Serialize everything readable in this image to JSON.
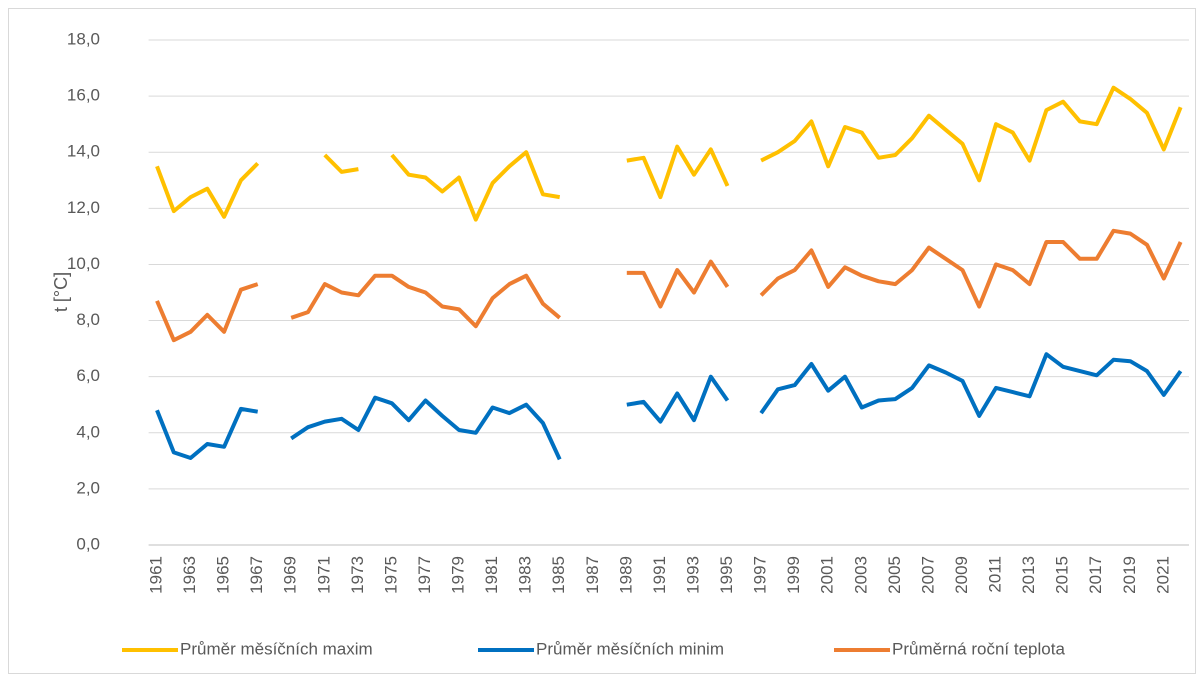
{
  "chart_data": {
    "type": "line",
    "ylabel": "t [°C]",
    "categories": [
      "1961",
      null,
      "1963",
      null,
      "1965",
      null,
      "1967",
      null,
      "1969",
      null,
      "1971",
      null,
      "1973",
      null,
      "1975",
      null,
      "1977",
      null,
      "1979",
      null,
      "1981",
      null,
      "1983",
      null,
      "1985",
      null,
      "1987",
      null,
      "1989",
      null,
      "1991",
      null,
      "1993",
      null,
      "1995",
      null,
      "1997",
      null,
      "1999",
      null,
      "2001",
      null,
      "2003",
      null,
      "2005",
      null,
      "2007",
      null,
      "2009",
      null,
      "2011",
      null,
      "2013",
      null,
      "2015",
      null,
      "2017",
      null,
      "2019",
      null,
      "2021",
      null
    ],
    "series": [
      {
        "name": "Průměr měsíčních maxim",
        "color": "#ffc000",
        "values": [
          13.5,
          11.9,
          12.4,
          12.7,
          11.7,
          13.0,
          13.6,
          null,
          null,
          null,
          13.9,
          13.3,
          13.4,
          null,
          13.9,
          13.2,
          13.1,
          12.6,
          13.1,
          11.6,
          12.9,
          13.5,
          14.0,
          12.5,
          12.4,
          null,
          null,
          null,
          13.7,
          13.8,
          12.4,
          14.2,
          13.2,
          14.1,
          12.8,
          null,
          13.7,
          14.0,
          14.4,
          15.1,
          13.5,
          14.9,
          14.7,
          13.8,
          13.9,
          14.5,
          15.3,
          14.8,
          14.3,
          13.0,
          15.0,
          14.7,
          13.7,
          15.5,
          15.8,
          15.1,
          15.0,
          16.3,
          15.9,
          15.4,
          14.1,
          15.6
        ]
      },
      {
        "name": "Průměr měsíčních minim",
        "color": "#0070c0",
        "values": [
          4.8,
          3.3,
          3.1,
          3.6,
          3.5,
          4.85,
          4.75,
          null,
          3.8,
          4.2,
          4.4,
          4.5,
          4.1,
          5.25,
          5.05,
          4.45,
          5.15,
          4.6,
          4.1,
          4.0,
          4.9,
          4.7,
          5.0,
          4.35,
          3.05,
          null,
          null,
          null,
          5.0,
          5.1,
          4.4,
          5.4,
          4.45,
          6.0,
          5.15,
          null,
          4.7,
          5.55,
          5.7,
          6.45,
          5.5,
          6.0,
          4.9,
          5.15,
          5.2,
          5.6,
          6.4,
          6.15,
          5.85,
          4.6,
          5.6,
          5.45,
          5.3,
          6.8,
          6.35,
          6.2,
          6.05,
          6.6,
          6.55,
          6.2,
          5.35,
          6.2
        ]
      },
      {
        "name": "Průměrná roční teplota",
        "color": "#ed7d31",
        "values": [
          8.7,
          7.3,
          7.6,
          8.2,
          7.6,
          9.1,
          9.3,
          null,
          8.1,
          8.3,
          9.3,
          9.0,
          8.9,
          9.6,
          9.6,
          9.2,
          9.0,
          8.5,
          8.4,
          7.8,
          8.8,
          9.3,
          9.6,
          8.6,
          8.1,
          null,
          null,
          null,
          9.7,
          9.7,
          8.5,
          9.8,
          9.0,
          10.1,
          9.2,
          null,
          8.9,
          9.5,
          9.8,
          10.5,
          9.2,
          9.9,
          9.6,
          9.4,
          9.3,
          9.8,
          10.6,
          10.2,
          9.8,
          8.5,
          10.0,
          9.8,
          9.3,
          10.8,
          10.8,
          10.2,
          10.2,
          11.2,
          11.1,
          10.7,
          9.5,
          10.8
        ]
      }
    ],
    "ylim": [
      0,
      18
    ],
    "yticks": [
      {
        "value": 0,
        "label": "0,0"
      },
      {
        "value": 2,
        "label": "2,0"
      },
      {
        "value": 4,
        "label": "4,0"
      },
      {
        "value": 6,
        "label": "6,0"
      },
      {
        "value": 8,
        "label": "8,0"
      },
      {
        "value": 10,
        "label": "10,0"
      },
      {
        "value": 12,
        "label": "12,0"
      },
      {
        "value": 14,
        "label": "14,0"
      },
      {
        "value": 16,
        "label": "16,0"
      },
      {
        "value": 18,
        "label": "18,0"
      }
    ],
    "grid": true,
    "legend": "bottom"
  }
}
